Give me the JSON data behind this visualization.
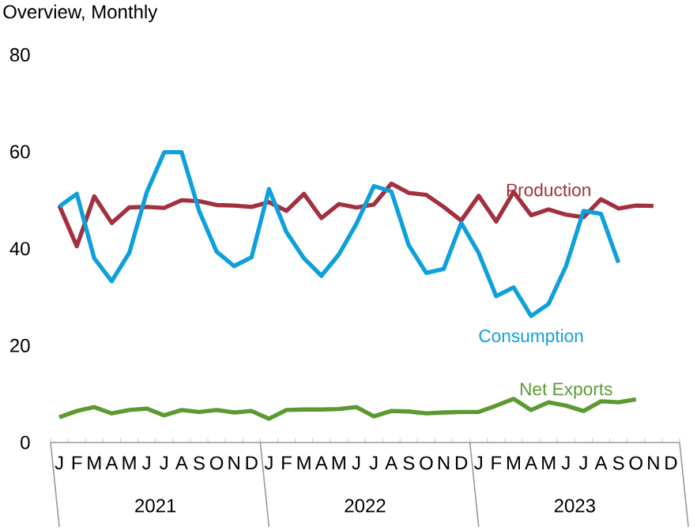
{
  "chart_data": {
    "type": "line",
    "title": "Overview, Monthly",
    "categories": [
      "J",
      "F",
      "M",
      "A",
      "M",
      "J",
      "J",
      "A",
      "S",
      "O",
      "N",
      "D",
      "J",
      "F",
      "M",
      "A",
      "M",
      "J",
      "J",
      "A",
      "S",
      "O",
      "N",
      "D",
      "J",
      "F",
      "M",
      "A",
      "M",
      "J",
      "J",
      "A",
      "S",
      "O",
      "N",
      "D"
    ],
    "annotations": [
      "2021",
      "2022",
      "2023"
    ],
    "series": [
      {
        "name": "Production",
        "color": "#a3303f",
        "values": [
          48.9,
          40.5,
          50.8,
          45.3,
          48.5,
          48.6,
          48.4,
          50.0,
          49.8,
          49.0,
          48.9,
          48.6,
          49.6,
          47.8,
          51.3,
          46.3,
          49.2,
          48.5,
          49.1,
          53.4,
          51.5,
          51.1,
          48.6,
          45.8,
          50.9,
          45.6,
          51.7,
          46.9,
          48.1,
          47.0,
          46.5,
          50.2,
          48.3,
          48.9,
          48.8,
          null
        ]
      },
      {
        "name": "Consumption",
        "color": "#0ea0dc",
        "values": [
          48.7,
          51.3,
          38.0,
          33.3,
          39.1,
          51.6,
          59.9,
          59.9,
          47.8,
          39.4,
          36.4,
          38.2,
          52.3,
          43.4,
          38.0,
          34.4,
          38.8,
          45.1,
          52.9,
          51.8,
          40.7,
          35.0,
          35.8,
          45.3,
          39.1,
          30.2,
          32.0,
          26.1,
          28.6,
          36.4,
          47.8,
          47.2,
          37.1,
          null,
          null,
          null
        ]
      },
      {
        "name": "Net Exports",
        "color": "#5b9a32",
        "values": [
          5.2,
          6.5,
          7.3,
          6.0,
          6.7,
          7.0,
          5.6,
          6.7,
          6.3,
          6.7,
          6.2,
          6.5,
          4.9,
          6.7,
          6.8,
          6.8,
          6.9,
          7.3,
          5.4,
          6.5,
          6.4,
          6.0,
          6.2,
          6.3,
          6.3,
          7.6,
          9.0,
          6.7,
          8.3,
          7.6,
          6.5,
          8.5,
          8.3,
          8.9,
          null,
          null
        ]
      }
    ],
    "ylim": [
      0,
      80
    ],
    "yticks": [
      0,
      20,
      40,
      60,
      80
    ],
    "grid": false,
    "legend": false
  }
}
